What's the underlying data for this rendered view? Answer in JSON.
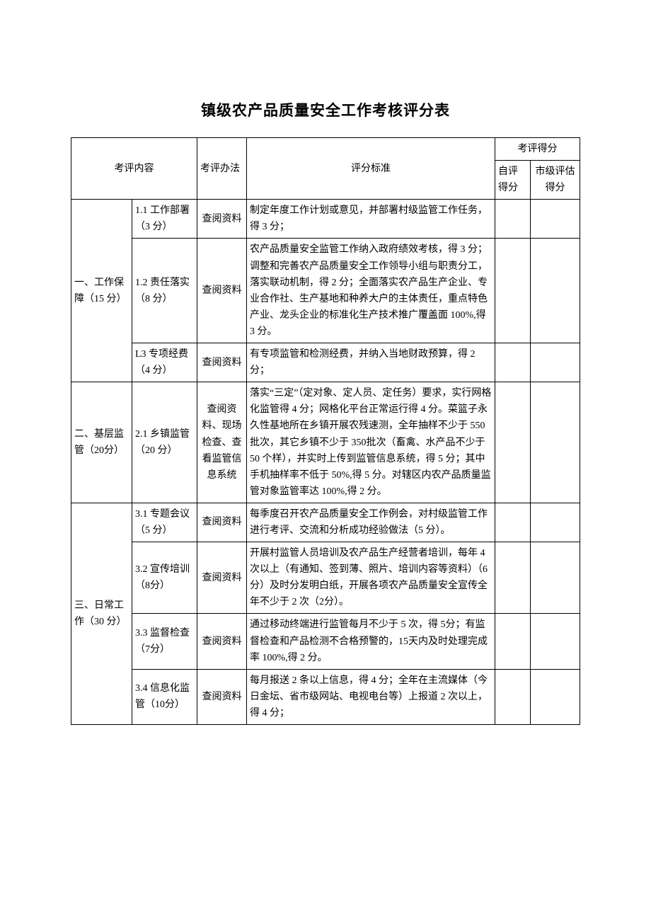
{
  "title": "镇级农产品质量安全工作考核评分表",
  "header": {
    "content": "考评内容",
    "method": "考评办法",
    "standard": "评分标准",
    "score_group": "考评得分",
    "self_score": "自评得分",
    "city_score": "市级评估得分"
  },
  "sections": [
    {
      "category": "一、工作保障（15 分）",
      "rows": [
        {
          "item": "1.1 工作部署（3 分）",
          "method": "查阅资料",
          "standard": "制定年度工作计划或意见，并部署村级监管工作任务，得 3 分；"
        },
        {
          "item": "1.2 责任落实（8 分）",
          "method": "查阅资料",
          "standard": "农产品质量安全监管工作纳入政府绩效考核，得 3 分；调整和完善农产品质量安全工作领导小组与职责分工，落实联动机制，得 2 分；全面落实农产品生产企业、专业合作社、生产基地和种养大户的主体责任，重点特色产业、龙头企业的标准化生产技术推广覆盖面 100%,得 3 分。"
        },
        {
          "item": "L3 专项经费（4 分）",
          "method": "查阅资料",
          "standard": "有专项监管和检测经费，并纳入当地财政预算，得 2 分；"
        }
      ]
    },
    {
      "category": "二、基层监管（20分）",
      "rows": [
        {
          "item": "2.1 乡镇监管（20 分）",
          "method": "查阅资料、现场检查、查看监管信息系统",
          "standard": "落实“三定”（定对象、定人员、定任务）要求，实行网格化监管得 4 分；网格化平台正常运行得 4 分。菜篮子永久性基地所在乡镇开展农残速测，全年抽样不少于 550 批次，其它乡镇不少于 350批次（畜禽、水产品不少于 50 个样），并实时上传到监管信息系统，得 5 分；其中手机抽样率不低于 50%,得 5 分。对辖区内农产品质量监管对象监管率达 100%,得 2 分。"
        }
      ]
    },
    {
      "category": "三、日常工作（30 分）",
      "rows": [
        {
          "item": "3.1 专题会议（5 分）",
          "method": "查阅资料",
          "standard": "每季度召开农产品质量安全工作例会，对村级监管工作进行考评、交流和分析成功经验做法（5 分）。"
        },
        {
          "item": "3.2 宣传培训（8分）",
          "method": "查阅资料",
          "standard": "开展村监管人员培训及农产品生产经营者培训，每年 4 次以上（有通知、签到薄、照片、培训内容等资料）（6 分）及时分发明白纸，开展各项农产品质量安全宣传全年不少于 2 次（2分）。"
        },
        {
          "item": "3.3 监督检查（7分）",
          "method": "查阅资料",
          "standard": "通过移动终端进行监管每月不少于 5 次，得 5分；有监督检查和产品检测不合格预警的，15天内及时处理完成率 100%,得 2 分。"
        },
        {
          "item": "3.4 信息化监管（10分）",
          "method": "查阅资料",
          "standard": "每月报送 2 条以上信息，得 4 分；全年在主流媒体（今日金坛、省市级网站、电视电台等）上报道 2 次以上，得 4 分；"
        }
      ]
    }
  ]
}
